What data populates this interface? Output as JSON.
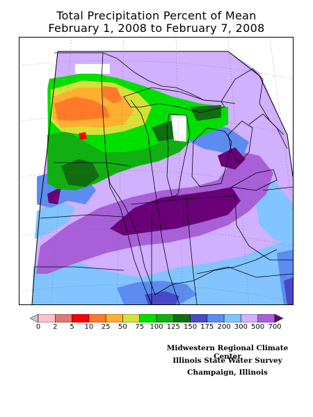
{
  "title": {
    "line1": "Total Precipitation Percent of Mean",
    "line2": "February 1, 2008 to February 7, 2008"
  },
  "legend": {
    "labels": [
      "0",
      "2",
      "5",
      "10",
      "25",
      "50",
      "75",
      "100",
      "125",
      "150",
      "175",
      "200",
      "300",
      "500",
      "700"
    ],
    "colors": [
      "#c8c8c8",
      "#ffc0c8",
      "#e07878",
      "#ff0000",
      "#ff7a28",
      "#ffb030",
      "#d8e038",
      "#00e000",
      "#10b010",
      "#106e10",
      "#4848c8",
      "#5c8cf0",
      "#82c4ff",
      "#d0b0ff",
      "#a860d8",
      "#6a0078"
    ]
  },
  "credits": {
    "line1": "Midwestern Regional Climate Center",
    "line2": "Illinois State Water Survey",
    "line3": "Champaign, Illinois"
  }
}
